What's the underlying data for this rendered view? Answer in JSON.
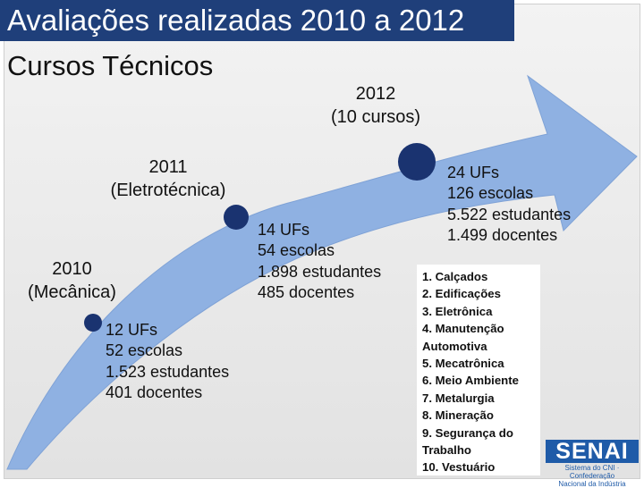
{
  "title": {
    "line1": "Avaliações realizadas 2010 a 2012",
    "line2": "Cursos Técnicos"
  },
  "milestones": [
    {
      "year": "2010",
      "course": "(Mecânica)",
      "stats": [
        "12 UFs",
        "52 escolas",
        "1.523 estudantes",
        "401 docentes"
      ]
    },
    {
      "year": "2011",
      "course": "(Eletrotécnica)",
      "stats": [
        "14 UFs",
        "54 escolas",
        "1.898 estudantes",
        "485 docentes"
      ]
    },
    {
      "year": "2012",
      "course": "(10 cursos)",
      "stats": [
        "24 UFs",
        "126 escolas",
        "5.522 estudantes",
        "1.499 docentes"
      ]
    }
  ],
  "courses": [
    "1.   Calçados",
    "2.   Edificações",
    "3.   Eletrônica",
    "4.   Manutenção",
    "Automotiva",
    "5.   Mecatrônica",
    "6.   Meio Ambiente",
    "7.   Metalurgia",
    "8.   Mineração",
    "9.   Segurança do",
    "Trabalho",
    "10. Vestuário"
  ],
  "logo": {
    "name": "SENAI",
    "subtitle_line1": "Sistema do CNI · Confederação",
    "subtitle_line2": "Nacional da Indústria"
  },
  "colors": {
    "title_bg": "#1f3f7a",
    "arrow": "#8fb1e2",
    "dot": "#1a3370",
    "logo": "#1f5ba8"
  }
}
